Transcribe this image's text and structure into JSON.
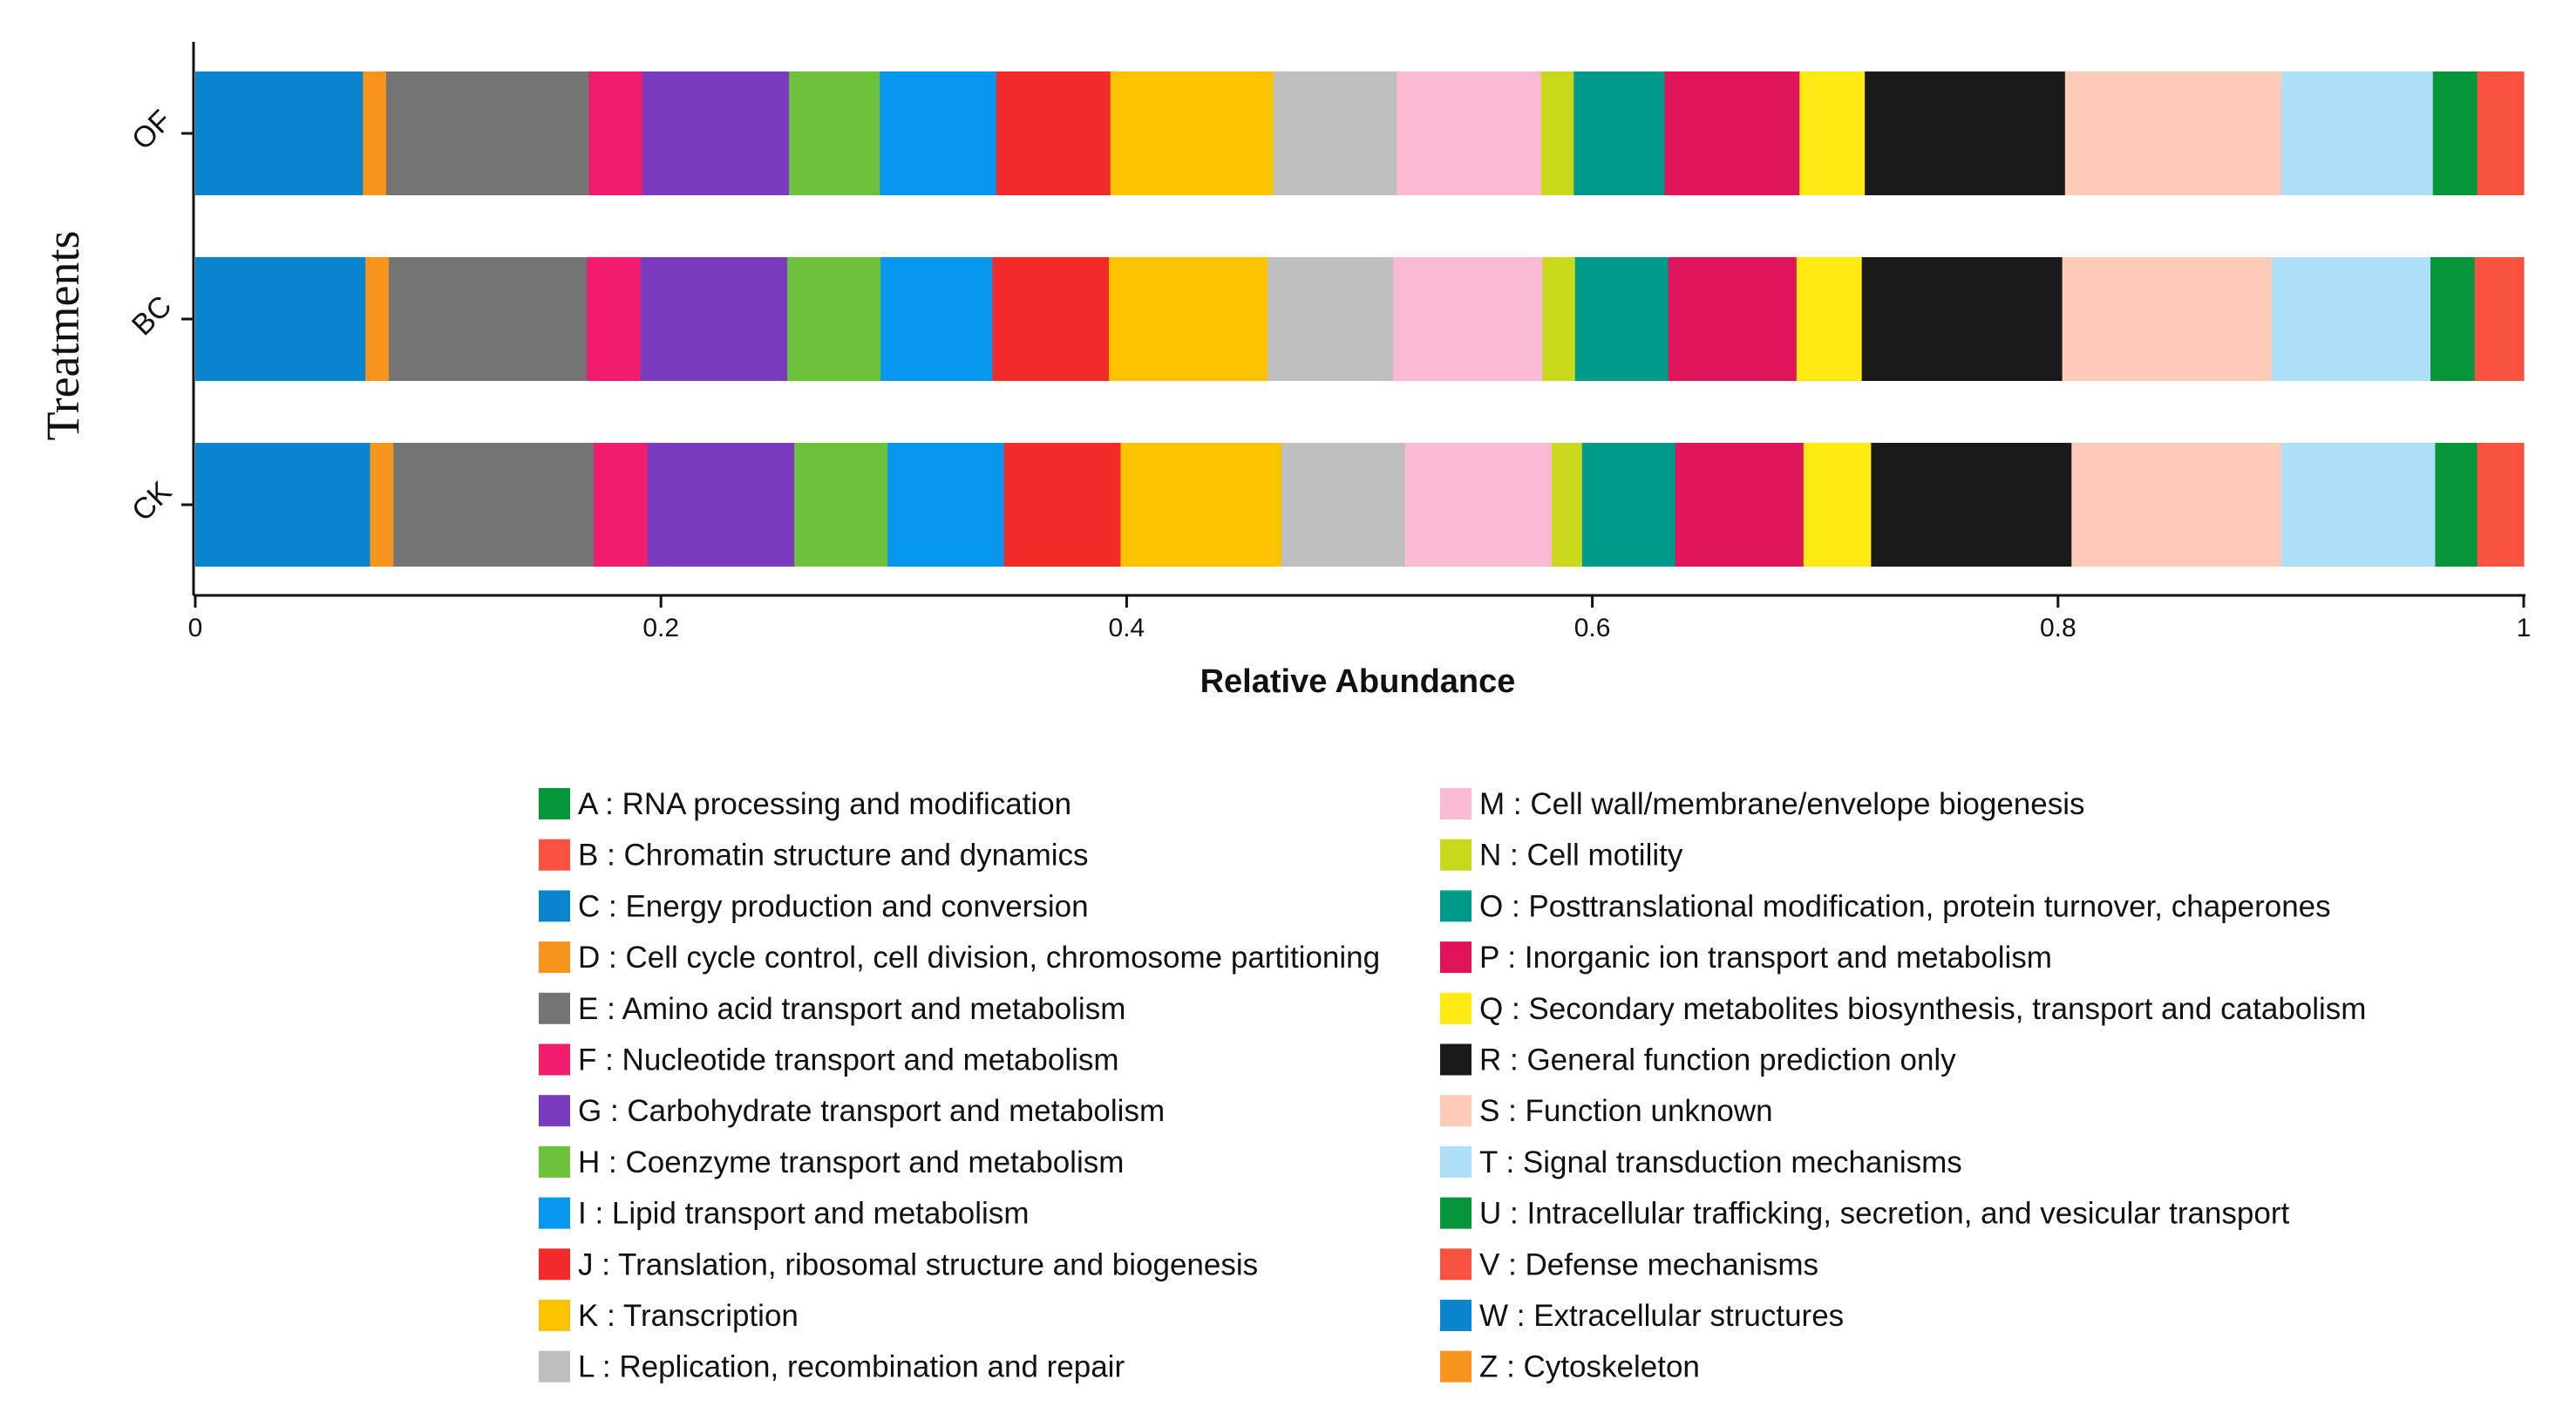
{
  "chart_data": {
    "type": "bar",
    "orientation": "horizontal",
    "stacked": true,
    "title": "",
    "xlabel": "Relative Abundance",
    "ylabel": "Treatments",
    "xlim": [
      0,
      1
    ],
    "x_ticks": [
      "0",
      "0.2",
      "0.4",
      "0.6",
      "0.8",
      "1"
    ],
    "categories": [
      "OF",
      "BC",
      "CK"
    ],
    "legend_position": "bottom",
    "series": [
      {
        "code": "C",
        "name": "C : Energy production and conversion",
        "color": "#0a84cc",
        "values": [
          0.072,
          0.073,
          0.075
        ]
      },
      {
        "code": "D",
        "name": "D : Cell cycle control, cell division, chromosome partitioning",
        "color": "#f7941d",
        "values": [
          0.01,
          0.01,
          0.01
        ]
      },
      {
        "code": "E",
        "name": "E : Amino acid transport and metabolism",
        "color": "#747474",
        "values": [
          0.087,
          0.085,
          0.086
        ]
      },
      {
        "code": "F",
        "name": "F : Nucleotide transport and metabolism",
        "color": "#f21c6e",
        "values": [
          0.023,
          0.023,
          0.023
        ]
      },
      {
        "code": "G",
        "name": "G : Carbohydrate transport and metabolism",
        "color": "#7b3bbf",
        "values": [
          0.063,
          0.063,
          0.063
        ]
      },
      {
        "code": "H",
        "name": "H : Coenzyme transport and metabolism",
        "color": "#6cc23a",
        "values": [
          0.039,
          0.04,
          0.04
        ]
      },
      {
        "code": "I",
        "name": "I : Lipid transport and metabolism",
        "color": "#0897ef",
        "values": [
          0.05,
          0.048,
          0.05
        ]
      },
      {
        "code": "J",
        "name": "J : Translation, ribosomal structure and biogenesis",
        "color": "#f22a2a",
        "values": [
          0.049,
          0.05,
          0.05
        ]
      },
      {
        "code": "K",
        "name": "K : Transcription",
        "color": "#fdc200",
        "values": [
          0.07,
          0.068,
          0.069
        ]
      },
      {
        "code": "L",
        "name": "L : Replication, recombination and repair",
        "color": "#bebebe",
        "values": [
          0.053,
          0.054,
          0.053
        ]
      },
      {
        "code": "M",
        "name": "M : Cell wall/membrane/envelope biogenesis",
        "color": "#fbbad3",
        "values": [
          0.062,
          0.064,
          0.063
        ]
      },
      {
        "code": "N",
        "name": "N : Cell motility",
        "color": "#c8d91c",
        "values": [
          0.014,
          0.014,
          0.013
        ]
      },
      {
        "code": "O",
        "name": "O : Posttranslational modification, protein turnover, chaperones",
        "color": "#009a8a",
        "values": [
          0.039,
          0.04,
          0.04
        ]
      },
      {
        "code": "P",
        "name": "P : Inorganic ion transport and metabolism",
        "color": "#e0145b",
        "values": [
          0.058,
          0.055,
          0.055
        ]
      },
      {
        "code": "Q",
        "name": "Q : Secondary metabolites biosynthesis, transport and catabolism",
        "color": "#ffea14",
        "values": [
          0.028,
          0.028,
          0.029
        ]
      },
      {
        "code": "R",
        "name": "R : General function prediction only",
        "color": "#1a1a1a",
        "values": [
          0.086,
          0.086,
          0.086
        ]
      },
      {
        "code": "S",
        "name": "S : Function unknown",
        "color": "#fdcbb8",
        "values": [
          0.093,
          0.09,
          0.09
        ]
      },
      {
        "code": "T",
        "name": "T : Signal transduction mechanisms",
        "color": "#addff8",
        "values": [
          0.065,
          0.068,
          0.066
        ]
      },
      {
        "code": "U",
        "name": "U : Intracellular trafficking, secretion, and vesicular transport",
        "color": "#07953a",
        "values": [
          0.019,
          0.019,
          0.018
        ]
      },
      {
        "code": "V",
        "name": "V : Defense mechanisms",
        "color": "#f85241",
        "values": [
          0.02,
          0.021,
          0.02
        ]
      }
    ],
    "legend": [
      [
        {
          "label": "A : RNA processing and modification",
          "color": "#07953a"
        },
        {
          "label": "B : Chromatin structure and dynamics",
          "color": "#f85241"
        },
        {
          "label": "C : Energy production and conversion",
          "color": "#0a84cc"
        },
        {
          "label": "D : Cell cycle control, cell division, chromosome partitioning",
          "color": "#f7941d"
        },
        {
          "label": "E : Amino acid transport and metabolism",
          "color": "#747474"
        },
        {
          "label": "F : Nucleotide transport and metabolism",
          "color": "#f21c6e"
        },
        {
          "label": "G : Carbohydrate transport and metabolism",
          "color": "#7b3bbf"
        },
        {
          "label": "H : Coenzyme transport and metabolism",
          "color": "#6cc23a"
        },
        {
          "label": "I : Lipid transport and metabolism",
          "color": "#0897ef"
        },
        {
          "label": "J : Translation, ribosomal structure and biogenesis",
          "color": "#f22a2a"
        },
        {
          "label": "K : Transcription",
          "color": "#fdc200"
        },
        {
          "label": "L : Replication, recombination and repair",
          "color": "#bebebe"
        }
      ],
      [
        {
          "label": "M : Cell wall/membrane/envelope biogenesis",
          "color": "#fbbad3"
        },
        {
          "label": "N : Cell motility",
          "color": "#c8d91c"
        },
        {
          "label": "O : Posttranslational modification, protein turnover, chaperones",
          "color": "#009a8a"
        },
        {
          "label": "P : Inorganic ion transport and metabolism",
          "color": "#e0145b"
        },
        {
          "label": "Q : Secondary metabolites biosynthesis, transport and catabolism",
          "color": "#ffea14"
        },
        {
          "label": "R : General function prediction only",
          "color": "#1a1a1a"
        },
        {
          "label": "S : Function unknown",
          "color": "#fdcbb8"
        },
        {
          "label": "T : Signal transduction mechanisms",
          "color": "#addff8"
        },
        {
          "label": "U : Intracellular trafficking, secretion, and vesicular transport",
          "color": "#07953a"
        },
        {
          "label": "V : Defense mechanisms",
          "color": "#f85241"
        },
        {
          "label": "W : Extracellular structures",
          "color": "#0a84cc"
        },
        {
          "label": "Z : Cytoskeleton",
          "color": "#f7941d"
        }
      ]
    ]
  }
}
